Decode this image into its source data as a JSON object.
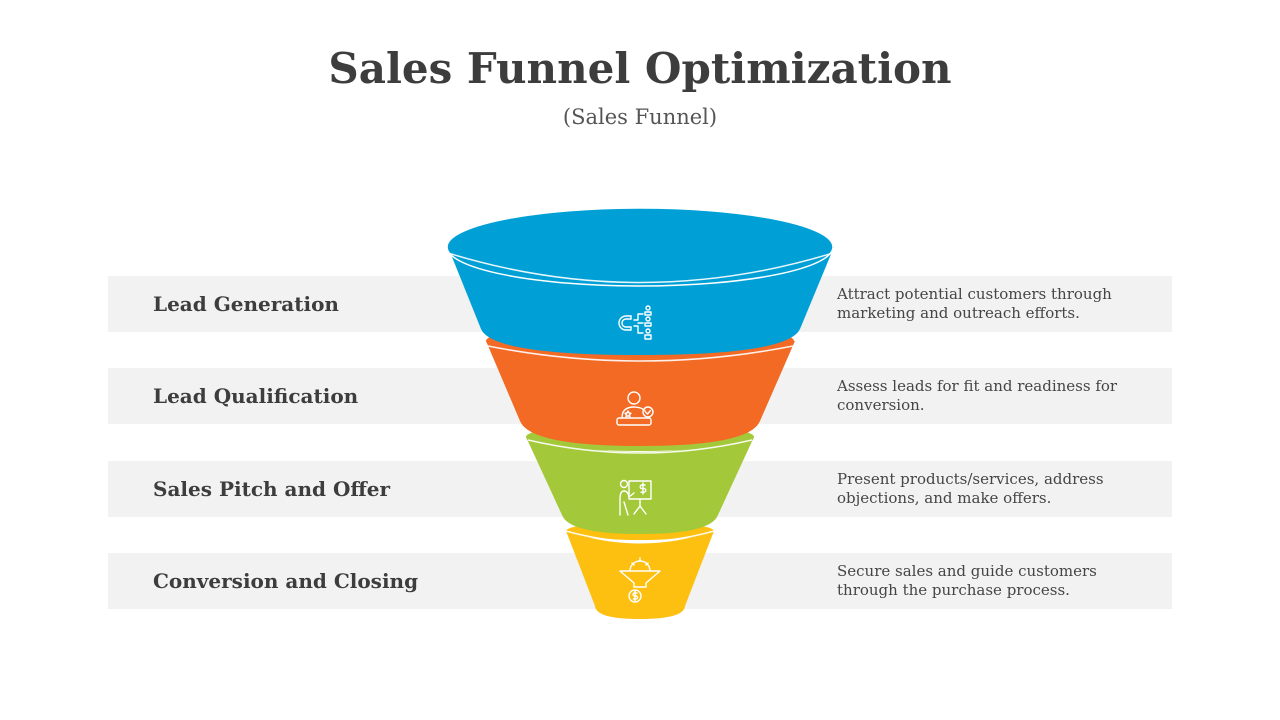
{
  "header": {
    "title": "Sales Funnel Optimization",
    "subtitle": "(Sales Funnel)"
  },
  "stages": [
    {
      "label": "Lead Generation",
      "description": "Attract potential customers through marketing and outreach efforts.",
      "color": "#00A0D6",
      "icon": "magnet-people-icon"
    },
    {
      "label": "Lead Qualification",
      "description": "Assess leads for fit and readiness for conversion.",
      "color": "#F26A24",
      "icon": "qualified-person-icon"
    },
    {
      "label": "Sales Pitch and Offer",
      "description": "Present products/services, address objections, and make offers.",
      "color": "#A3C93A",
      "icon": "presentation-board-icon"
    },
    {
      "label": "Conversion  and Closing",
      "description": "Secure sales and guide customers through the purchase process.",
      "color": "#FDC010",
      "icon": "funnel-dollar-icon"
    }
  ]
}
